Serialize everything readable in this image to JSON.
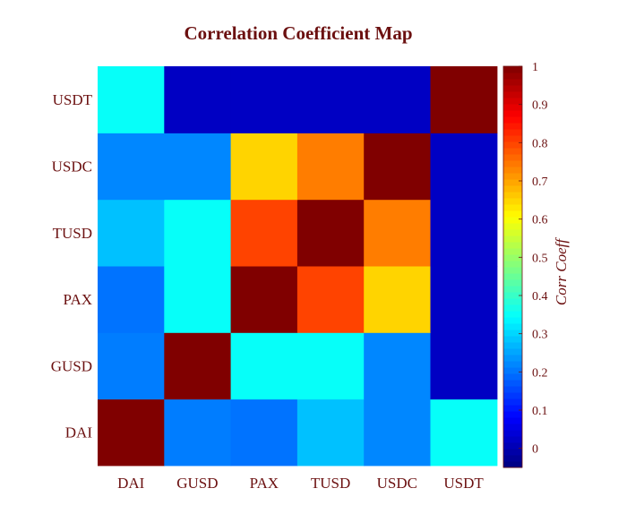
{
  "chart_data": {
    "type": "heatmap",
    "title": "Correlation Coefficient Map",
    "x_categories": [
      "DAI",
      "GUSD",
      "PAX",
      "TUSD",
      "USDC",
      "USDT"
    ],
    "y_categories": [
      "DAI",
      "GUSD",
      "PAX",
      "TUSD",
      "USDC",
      "USDT"
    ],
    "values": [
      [
        1.0,
        0.21,
        0.2,
        0.28,
        0.22,
        0.35
      ],
      [
        0.21,
        1.0,
        0.35,
        0.35,
        0.22,
        0.02
      ],
      [
        0.2,
        0.35,
        1.0,
        0.8,
        0.65,
        0.02
      ],
      [
        0.28,
        0.35,
        0.8,
        1.0,
        0.74,
        0.02
      ],
      [
        0.22,
        0.22,
        0.65,
        0.74,
        1.0,
        0.02
      ],
      [
        0.35,
        0.02,
        0.02,
        0.02,
        0.02,
        1.0
      ]
    ],
    "colorbar": {
      "label": "Corr Coeff",
      "range": [
        -0.05,
        1.0
      ],
      "ticks": [
        0,
        0.1,
        0.2,
        0.3,
        0.4,
        0.5,
        0.6,
        0.7,
        0.8,
        0.9,
        1
      ],
      "tick_labels": [
        "0",
        "0.1",
        "0.2",
        "0.3",
        "0.4",
        "0.5",
        "0.6",
        "0.7",
        "0.8",
        "0.9",
        "1"
      ],
      "colormap": "jet"
    }
  }
}
